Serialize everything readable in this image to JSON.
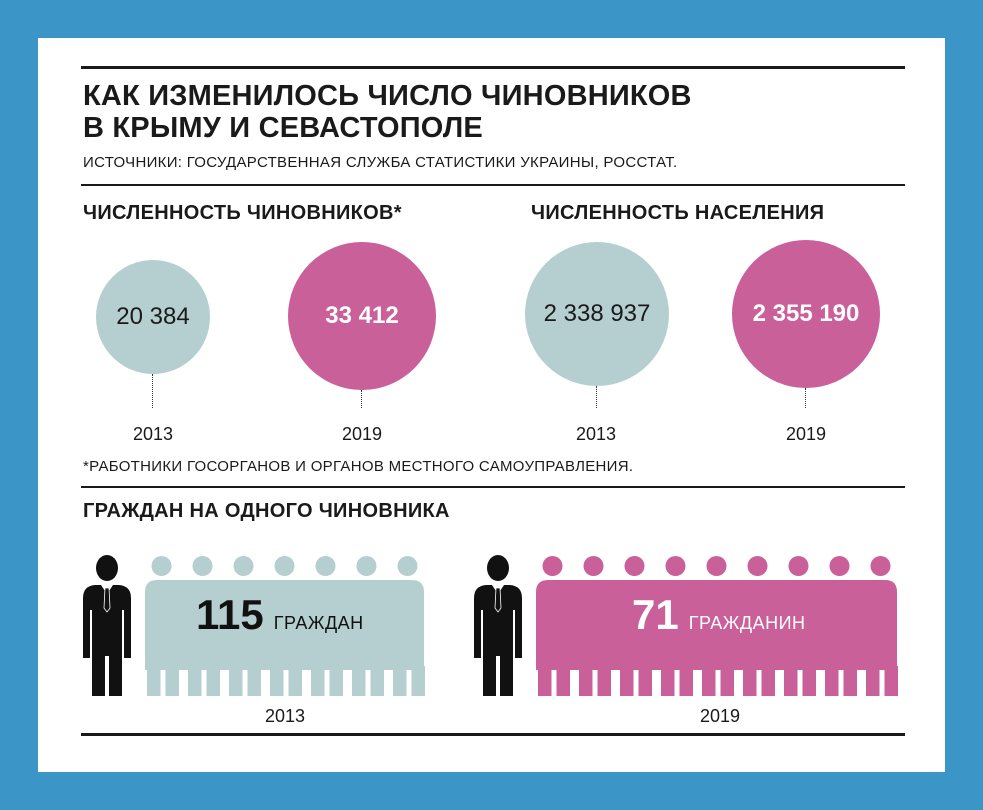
{
  "header": {
    "title_line1": "КАК ИЗМЕНИЛОСЬ ЧИСЛО ЧИНОВНИКОВ",
    "title_line2": "В КРЫМУ И СЕВАСТОПОЛЕ",
    "source": "ИСТОЧНИКИ: ГОСУДАРСТВЕННАЯ СЛУЖБА СТАТИСТИКИ УКРАИНЫ, РОССТАТ."
  },
  "colors": {
    "y2013": "#b5cfd0",
    "y2019": "#c9609a",
    "official": "#111111",
    "background": "#3b95c6"
  },
  "footnote": "*РАБОТНИКИ ГОСОРГАНОВ И ОРГАНОВ МЕСТНОГО САМОУПРАВЛЕНИЯ.",
  "chart_data": [
    {
      "type": "bubble",
      "title": "ЧИСЛЕННОСТЬ ЧИНОВНИКОВ*",
      "categories": [
        "2013",
        "2019"
      ],
      "values": [
        20384,
        33412
      ],
      "labels": [
        "20 384",
        "33 412"
      ]
    },
    {
      "type": "bubble",
      "title": "ЧИСЛЕННОСТЬ НАСЕЛЕНИЯ",
      "categories": [
        "2013",
        "2019"
      ],
      "values": [
        2338937,
        2355190
      ],
      "labels": [
        "2 338 937",
        "2 355 190"
      ]
    },
    {
      "type": "pictogram",
      "title": "ГРАЖДАН НА ОДНОГО ЧИНОВНИКА",
      "categories": [
        "2013",
        "2019"
      ],
      "values": [
        115,
        71
      ],
      "labels": [
        "115",
        "71"
      ],
      "units": [
        "ГРАЖДАН",
        "ГРАЖДАНИН"
      ]
    }
  ]
}
